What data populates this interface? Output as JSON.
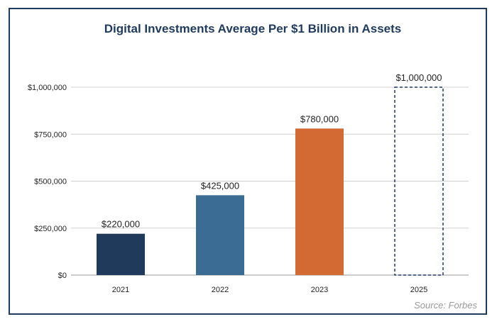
{
  "chart_data": {
    "type": "bar",
    "title": "Digital Investments Average Per $1 Billion in Assets",
    "categories": [
      "2021",
      "2022",
      "2023",
      "2025"
    ],
    "values": [
      220000,
      425000,
      780000,
      1000000
    ],
    "data_labels": [
      "$220,000",
      "$425,000",
      "$780,000",
      "$1,000,000"
    ],
    "bar_colors": [
      "#1f3a5a",
      "#3b6c93",
      "#d46a33",
      "none"
    ],
    "bar_styles": [
      "solid",
      "solid",
      "solid",
      "dashed-outline"
    ],
    "outline_color": "#1f3a5f",
    "yticks": [
      0,
      250000,
      500000,
      750000,
      1000000
    ],
    "ytick_labels": [
      "$0",
      "$250,000",
      "$500,000",
      "$750,000",
      "$1,000,000"
    ],
    "ylim": [
      0,
      1000000
    ],
    "grid": true,
    "xlabel": "",
    "ylabel": ""
  },
  "source": "Source: Forbes"
}
